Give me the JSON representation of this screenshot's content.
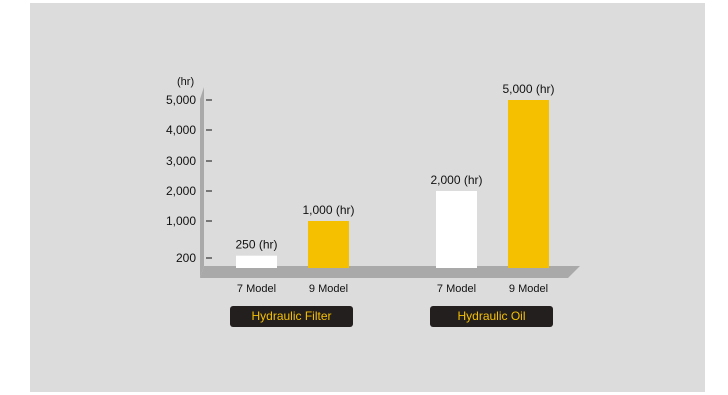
{
  "chart_data": {
    "type": "bar",
    "y_unit": "(hr)",
    "y_ticks": [
      {
        "value": 200,
        "label": "200"
      },
      {
        "value": 1000,
        "label": "1,000"
      },
      {
        "value": 2000,
        "label": "2,000"
      },
      {
        "value": 3000,
        "label": "3,000"
      },
      {
        "value": 4000,
        "label": "4,000"
      },
      {
        "value": 5000,
        "label": "5,000"
      }
    ],
    "ylim": [
      0,
      5000
    ],
    "groups": [
      {
        "name": "Hydraulic Filter",
        "bars": [
          {
            "category": "7 Model",
            "value": 250,
            "label": "250 (hr)"
          },
          {
            "category": "9 Model",
            "value": 1000,
            "label": "1,000 (hr)"
          }
        ]
      },
      {
        "name": "Hydraulic Oil",
        "bars": [
          {
            "category": "7 Model",
            "value": 2000,
            "label": "2,000 (hr)"
          },
          {
            "category": "9 Model",
            "value": 5000,
            "label": "5,000 (hr)"
          }
        ]
      }
    ],
    "series_colors": {
      "7 Model": "#ffffff",
      "9 Model": "#f5c000"
    },
    "legend": "none",
    "grid": false
  }
}
